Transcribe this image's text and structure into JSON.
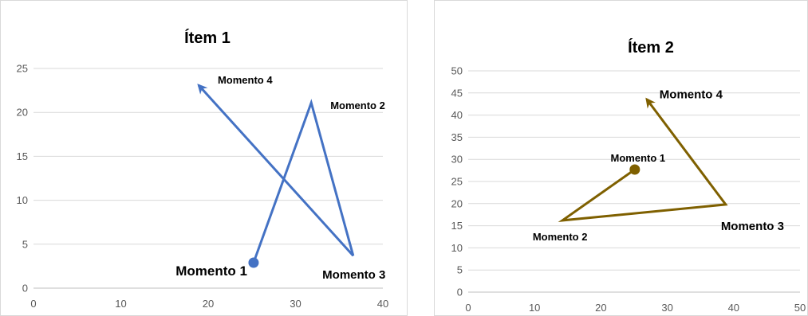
{
  "chart_data": [
    {
      "type": "line",
      "title": "Ítem 1",
      "xlabel": "",
      "ylabel": "",
      "xlim": [
        0,
        40
      ],
      "ylim": [
        0,
        25
      ],
      "x_ticks": [
        0,
        10,
        20,
        30,
        40
      ],
      "y_ticks": [
        0,
        5,
        10,
        15,
        20,
        25
      ],
      "grid": "horizontal",
      "legend": "none",
      "series_color": "#4472C4",
      "start_marker": "circle",
      "end_marker": "arrow",
      "points": [
        {
          "label": "Momento 1",
          "x": 25.2,
          "y": 2.9
        },
        {
          "label": "Momento 2",
          "x": 31.8,
          "y": 21.1
        },
        {
          "label": "Momento 3",
          "x": 36.6,
          "y": 3.7
        },
        {
          "label": "Momento 4",
          "x": 18.9,
          "y": 23.1
        }
      ]
    },
    {
      "type": "line",
      "title": "Ítem 2",
      "xlabel": "",
      "ylabel": "",
      "xlim": [
        0,
        50
      ],
      "ylim": [
        0,
        50
      ],
      "x_ticks": [
        0,
        10,
        20,
        30,
        40,
        50
      ],
      "y_ticks": [
        0,
        5,
        10,
        15,
        20,
        25,
        30,
        35,
        40,
        45,
        50
      ],
      "grid": "horizontal",
      "legend": "none",
      "series_color": "#7F6000",
      "start_marker": "circle",
      "end_marker": "arrow",
      "points": [
        {
          "label": "Momento 1",
          "x": 25.1,
          "y": 27.7
        },
        {
          "label": "Momento 2",
          "x": 14.2,
          "y": 16.2
        },
        {
          "label": "Momento 3",
          "x": 38.8,
          "y": 19.8
        },
        {
          "label": "Momento 4",
          "x": 26.9,
          "y": 43.6
        }
      ]
    }
  ]
}
